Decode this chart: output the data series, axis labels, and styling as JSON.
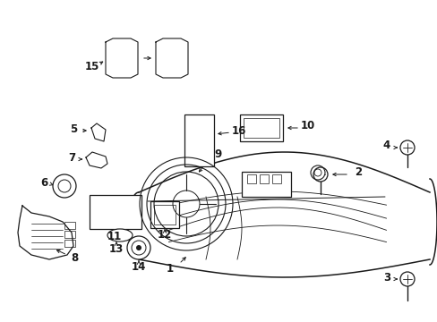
{
  "bg_color": "#ffffff",
  "line_color": "#1a1a1a",
  "fig_width": 4.89,
  "fig_height": 3.6,
  "dpi": 100,
  "label_fontsize": 8.5,
  "arrow_lw": 0.7
}
